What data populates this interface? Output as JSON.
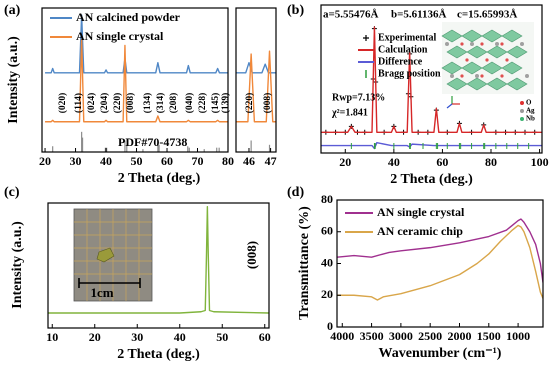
{
  "chart_data": [
    {
      "type": "line",
      "panel_label": "(a)",
      "xlabel": "2 Theta (deg.)",
      "ylabel": "Intensity (a.u.)",
      "xlim": [
        19,
        80
      ],
      "ylim": [
        0,
        100
      ],
      "xticks": [
        20,
        30,
        40,
        50,
        60,
        70,
        80
      ],
      "legend": "upper left",
      "series": [
        {
          "name": "AN calcined powder",
          "color": "#4f87c6",
          "style": "line",
          "x": [
            20,
            22,
            22.5,
            23,
            31.3,
            32,
            32.7,
            39.5,
            40,
            40.5,
            45.6,
            46.2,
            46.8,
            56.3,
            57,
            57.7,
            66.4,
            67,
            67.6,
            76,
            76.6,
            77.2,
            80
          ],
          "values": [
            55,
            55,
            58,
            55,
            55,
            95,
            55,
            55,
            57,
            55,
            55,
            65,
            55,
            55,
            62,
            55,
            55,
            60,
            55,
            55,
            58,
            55,
            55
          ]
        },
        {
          "name": "AN single crystal",
          "color": "#f0883a",
          "style": "line",
          "x": [
            20,
            22,
            22.5,
            23,
            31.3,
            32,
            32.7,
            39.5,
            40,
            40.5,
            45.6,
            46.2,
            46.8,
            56.3,
            57,
            57.7,
            66.4,
            67,
            67.6,
            76,
            76.6,
            77.2,
            80
          ],
          "values": [
            21,
            21,
            22,
            21,
            21,
            78,
            21,
            21,
            22,
            21,
            21,
            74,
            21,
            21,
            25,
            21,
            21,
            22,
            21,
            21,
            22,
            21,
            21
          ]
        }
      ],
      "reference": {
        "name": "PDF#70-4738",
        "color": "#8c8c8c",
        "x": [
          22.5,
          32,
          32.3,
          39.8,
          40.2,
          46.2,
          46.8,
          52.1,
          57,
          57.4,
          66.8,
          67.3,
          72.2,
          76.3,
          77.1
        ],
        "values": [
          4,
          14,
          10,
          3,
          3,
          8,
          5,
          2,
          6,
          5,
          4,
          3,
          2,
          3,
          3
        ]
      },
      "peak_labels": [
        "(020)",
        "(114)",
        "(024)",
        "(204)",
        "(220)",
        "(008)",
        "(134)",
        "(314)",
        "(208)",
        "(040)",
        "(228)",
        "(145)",
        "(139)"
      ],
      "zoom": {
        "xlim": [
          45.4,
          47.25
        ],
        "xticks": [
          46,
          47
        ],
        "peak_labels": [
          "(220)",
          "(008)"
        ],
        "series": [
          {
            "x": [
              45.4,
              45.85,
              46,
              46.15,
              46.6,
              46.75,
              46.9,
              47.25
            ],
            "values": [
              55,
              55,
              62,
              55,
              55,
              61,
              55,
              55
            ]
          },
          {
            "x": [
              45.4,
              45.95,
              46.1,
              46.25,
              46.8,
              46.95,
              47.1,
              47.25
            ],
            "values": [
              21,
              21,
              68,
              21,
              21,
              70,
              21,
              21
            ]
          }
        ],
        "reference": {
          "x": [
            46.1,
            46.95
          ],
          "values": [
            8,
            5
          ]
        }
      }
    },
    {
      "type": "line",
      "panel_label": "(b)",
      "xlabel": "2 Theta (deg.)",
      "xlim": [
        10,
        101
      ],
      "ylim": [
        0,
        100
      ],
      "xticks": [
        20,
        40,
        60,
        80,
        100
      ],
      "legend": "upper left",
      "lattice": [
        "a=5.55476Å",
        "b=5.61136Å",
        "c=15.65993Å"
      ],
      "annotations": [
        "Rwp=7.13%",
        "χ²=1.841"
      ],
      "inset_legend": [
        {
          "name": "O",
          "color": "#e03030"
        },
        {
          "name": "Ag",
          "color": "#9a9a9a"
        },
        {
          "name": "Nb",
          "color": "#3cb371"
        }
      ],
      "series": [
        {
          "name": "Experimental",
          "color": "#000000",
          "style": "cross",
          "x": [
            12,
            16,
            20,
            22.5,
            25,
            28,
            31.5,
            32,
            32.5,
            36,
            40,
            44,
            46,
            46.5,
            47,
            50,
            54,
            57.5,
            62,
            67,
            72,
            77,
            82,
            86,
            90,
            94,
            98
          ],
          "values": [
            14,
            14,
            14,
            18,
            14,
            14,
            50,
            84,
            48,
            14,
            18,
            14,
            40,
            67,
            38,
            14,
            14,
            29,
            14,
            20,
            14,
            19,
            14,
            14,
            14,
            14,
            14
          ]
        },
        {
          "name": "Calculation",
          "color": "#d62728",
          "style": "line",
          "x": [
            10,
            21,
            22.5,
            24,
            31,
            32,
            33,
            39,
            40,
            41,
            45.5,
            46.5,
            47.5,
            56.5,
            57.5,
            58.5,
            66,
            67,
            68,
            76,
            77,
            78,
            101
          ],
          "values": [
            14,
            14,
            18,
            14,
            14,
            85,
            14,
            14,
            18,
            14,
            14,
            68,
            14,
            14,
            30,
            14,
            14,
            20,
            14,
            14,
            19,
            14,
            14
          ]
        },
        {
          "name": "Difference",
          "color": "#5b5bd6",
          "style": "line",
          "x": [
            10,
            21,
            22.5,
            24,
            31,
            32,
            33,
            39,
            40,
            41,
            45.5,
            46.5,
            47.5,
            56.5,
            57.5,
            58.5,
            66,
            67,
            68,
            76,
            77,
            78,
            101
          ],
          "values": [
            5,
            5,
            5,
            5,
            5,
            3,
            7,
            5,
            5,
            5,
            5,
            4,
            6,
            5,
            5,
            5,
            5,
            5,
            5,
            5,
            5,
            5,
            5
          ]
        },
        {
          "name": "Bragg position",
          "color": "#2e9e3e",
          "style": "stick",
          "x": [
            22.5,
            32,
            32.3,
            40,
            46.5,
            46.8,
            52,
            57.5,
            58,
            62,
            67,
            67.5,
            72,
            77,
            77.4,
            82,
            86.5,
            91,
            95.5
          ]
        }
      ]
    },
    {
      "type": "line",
      "panel_label": "(c)",
      "xlabel": "2 Theta (deg.)",
      "ylabel": "Intensity (a.u.)",
      "xlim": [
        9,
        61
      ],
      "ylim": [
        0,
        100
      ],
      "xticks": [
        10,
        20,
        30,
        40,
        50,
        60
      ],
      "peak_labels": [
        "(008)"
      ],
      "inset_text": "1cm",
      "series": [
        {
          "color": "#80b43c",
          "style": "line",
          "x": [
            9,
            20,
            40,
            45,
            46,
            46.3,
            46.5,
            46.7,
            47,
            48,
            61
          ],
          "values": [
            12,
            12,
            12,
            13,
            14,
            60,
            97,
            60,
            14,
            13,
            12
          ]
        }
      ]
    },
    {
      "type": "line",
      "panel_label": "(d)",
      "xlabel": "Wavenumber (cm⁻¹)",
      "ylabel": "Transmittance (%)",
      "xlim": [
        4090,
        575
      ],
      "ylim": [
        0,
        80
      ],
      "xticks": [
        4000,
        3500,
        3000,
        2500,
        2000,
        1500,
        1000
      ],
      "yticks": [
        0,
        20,
        40,
        60,
        80
      ],
      "legend": "upper left",
      "series": [
        {
          "name": "AN single crystal",
          "color": "#a0308f",
          "style": "line",
          "x": [
            4090,
            3800,
            3500,
            3200,
            3000,
            2500,
            2000,
            1500,
            1200,
            1100,
            1000,
            950,
            900,
            800,
            700,
            620,
            575
          ],
          "values": [
            44,
            45,
            44,
            47,
            48,
            50,
            53,
            57,
            61,
            64,
            67,
            68,
            66,
            60,
            52,
            40,
            28
          ]
        },
        {
          "name": "AN ceramic chip",
          "color": "#d9a64a",
          "style": "line",
          "x": [
            4090,
            3800,
            3500,
            3400,
            3300,
            3000,
            2500,
            2000,
            1700,
            1500,
            1300,
            1100,
            1000,
            950,
            900,
            800,
            700,
            620,
            575
          ],
          "values": [
            20,
            20,
            19,
            17,
            19,
            21,
            26,
            33,
            40,
            46,
            54,
            61,
            64,
            63,
            60,
            50,
            35,
            22,
            18
          ]
        }
      ]
    }
  ]
}
